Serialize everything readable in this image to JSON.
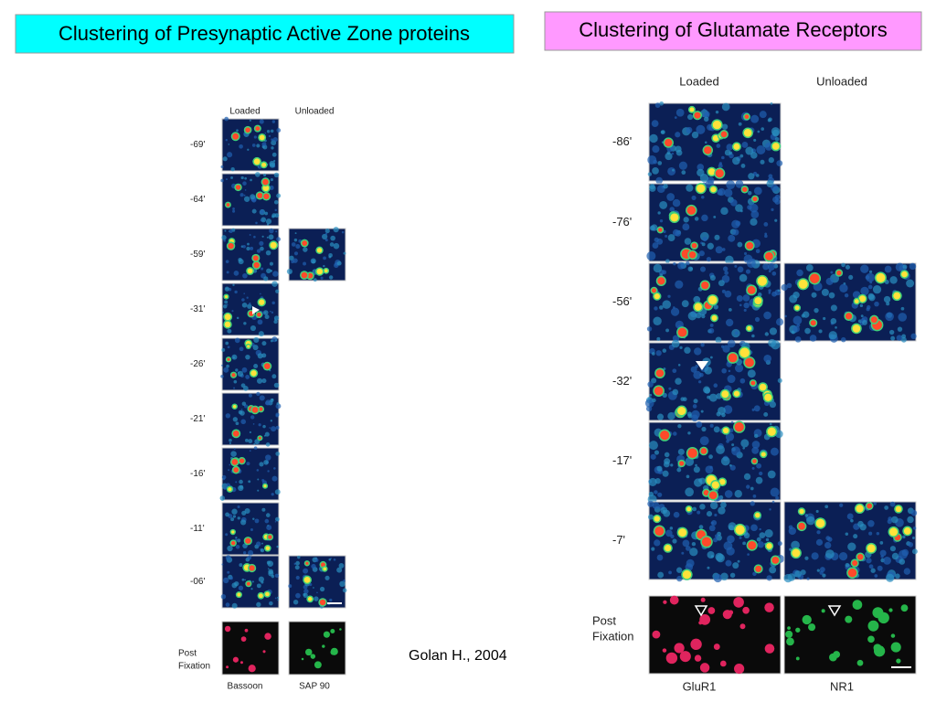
{
  "left_panel": {
    "title": "Clustering of Presynaptic Active Zone proteins",
    "column_headers": [
      "Loaded",
      "Unloaded"
    ],
    "rows": [
      {
        "time": "-69'",
        "has_unloaded": false
      },
      {
        "time": "-64'",
        "has_unloaded": false
      },
      {
        "time": "-59'",
        "has_unloaded": true
      },
      {
        "time": "-31'",
        "has_unloaded": false
      },
      {
        "time": "-26'",
        "has_unloaded": false
      },
      {
        "time": "-21'",
        "has_unloaded": false
      },
      {
        "time": "-16'",
        "has_unloaded": false
      },
      {
        "time": "-11'",
        "has_unloaded": false
      },
      {
        "time": "-06'",
        "has_unloaded": true
      }
    ],
    "post_fixation": {
      "label_lines": [
        "Post",
        "Fixation"
      ],
      "captions": [
        "Bassoon",
        "SAP 90"
      ]
    }
  },
  "right_panel": {
    "title": "Clustering of Glutamate Receptors",
    "column_headers": [
      "Loaded",
      "Unloaded"
    ],
    "rows": [
      {
        "time": "-86'",
        "has_unloaded": false
      },
      {
        "time": "-76'",
        "has_unloaded": false
      },
      {
        "time": "-56'",
        "has_unloaded": true
      },
      {
        "time": "-32'",
        "has_unloaded": false
      },
      {
        "time": "-17'",
        "has_unloaded": false
      },
      {
        "time": "-7'",
        "has_unloaded": true
      }
    ],
    "post_fixation": {
      "label_lines": [
        "Post",
        "Fixation"
      ],
      "captions": [
        "GluR1",
        "NR1"
      ]
    }
  },
  "citation": "Golan H., 2004"
}
